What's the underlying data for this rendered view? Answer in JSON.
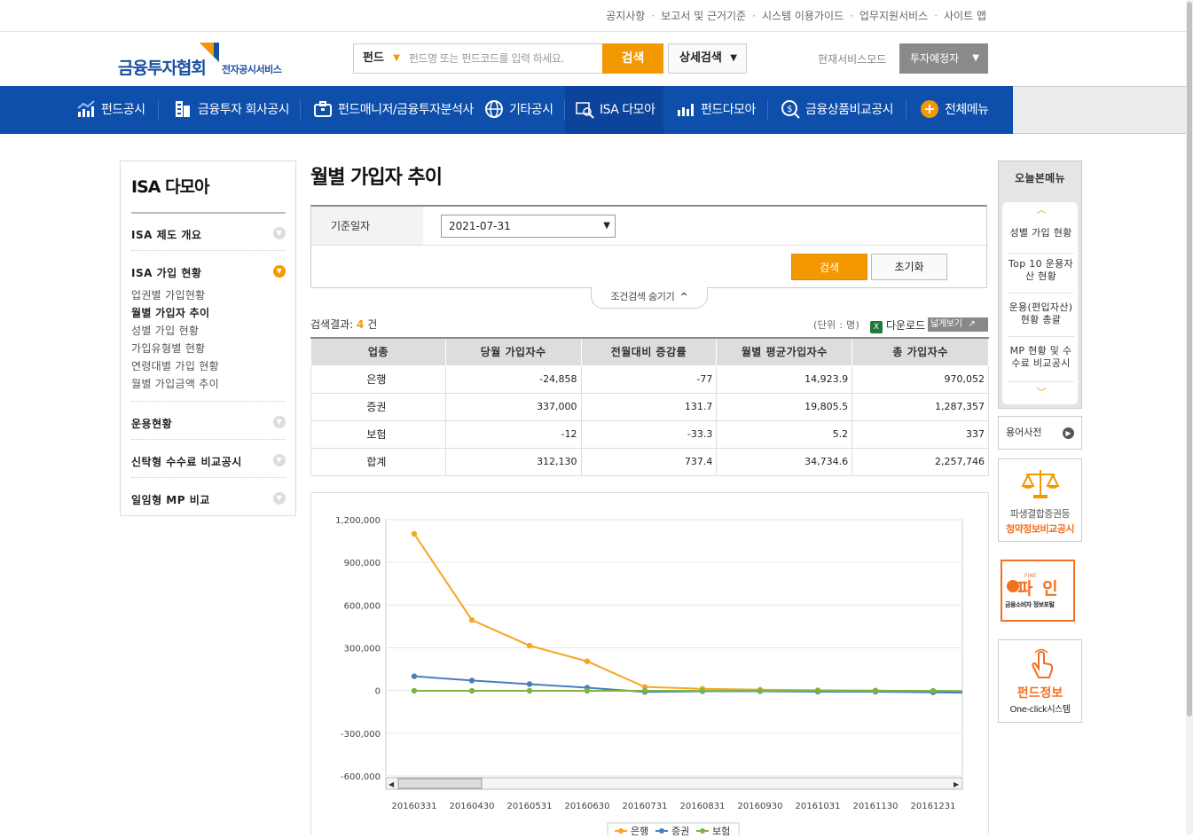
{
  "util_links": [
    "공지사항",
    "보고서 및 근거기준",
    "시스템 이용가이드",
    "업무지원서비스",
    "사이트 맵"
  ],
  "logo": {
    "main": "금융투자협회",
    "sub": "전자공시서비스"
  },
  "search": {
    "category": "펀드",
    "placeholder": "펀드명 또는 펀드코드를 입력 하세요.",
    "button": "검색",
    "advanced": "상세검색"
  },
  "mode": {
    "label": "현재서비스모드",
    "value": "투자예정자"
  },
  "gnb": [
    "펀드공시",
    "금융투자 회사공시",
    "펀드매니저/금융투자분석사",
    "기타공시",
    "ISA 다모아",
    "펀드다모아",
    "금융상품비교공시",
    "전체메뉴"
  ],
  "lnb": {
    "title": "ISA 다모아",
    "menus": [
      "ISA 제도 개요",
      "ISA 가입 현황",
      "운용현황",
      "신탁형 수수료 비교공시",
      "일임형 MP 비교"
    ],
    "subs": [
      "업권별 가입현황",
      "월별 가입자 추이",
      "성별 가입 현황",
      "가입유형별 현황",
      "연령대별 가입 현황",
      "월별 가입금액 추이"
    ]
  },
  "page_title": "월별 가입자 추이",
  "condition": {
    "label": "기준일자",
    "date": "2021-07-31",
    "search_btn": "검색",
    "reset_btn": "초기화",
    "toggle": "조건검색 숨기기"
  },
  "result": {
    "prefix": "검색결과:",
    "count": "4",
    "suffix": "건",
    "unit": "(단위 : 명)",
    "download": "다운로드",
    "wide": "넓게보기"
  },
  "table": {
    "headers": [
      "업종",
      "당월 가입자수",
      "전월대비 증감률",
      "월별 평균가입자수",
      "총 가입자수"
    ],
    "rows": [
      [
        "은행",
        "-24,858",
        "-77",
        "14,923.9",
        "970,052"
      ],
      [
        "증권",
        "337,000",
        "131.7",
        "19,805.5",
        "1,287,357"
      ],
      [
        "보험",
        "-12",
        "-33.3",
        "5.2",
        "337"
      ],
      [
        "합계",
        "312,130",
        "737.4",
        "34,734.6",
        "2,257,746"
      ]
    ]
  },
  "chart_data": {
    "type": "line",
    "x": [
      "20160331",
      "20160430",
      "20160531",
      "20160630",
      "20160731",
      "20160831",
      "20160930",
      "20161031",
      "20161130",
      "20161231"
    ],
    "ylim": [
      -600000,
      1200000
    ],
    "yticks": [
      "1,200,000",
      "900,000",
      "600,000",
      "300,000",
      "0",
      "-300,000",
      "-600,000"
    ],
    "series": [
      {
        "name": "은행",
        "color": "#f5a623",
        "values": [
          1100000,
          495000,
          315000,
          205000,
          25000,
          12000,
          6000,
          2000,
          0,
          -6000
        ]
      },
      {
        "name": "증권",
        "color": "#4a7ebb",
        "values": [
          100000,
          70000,
          45000,
          20000,
          -10000,
          -5000,
          -5000,
          -8000,
          -8000,
          -13000
        ]
      },
      {
        "name": "보험",
        "color": "#7cb342",
        "values": [
          -2000,
          -2000,
          -2000,
          -2000,
          -2000,
          -2000,
          -2000,
          -2000,
          -2000,
          -2000
        ]
      }
    ]
  },
  "right": {
    "today_title": "오늘본메뉴",
    "today_items": [
      "성별 가입 현황",
      "Top 10 운용자산 현황",
      "운용(편입자산) 현황 총괄",
      "MP 현황 및 수수료 비교공시"
    ],
    "dict": "용어사전",
    "banner1": {
      "line1": "파생결합증권등",
      "line2": "청약정보비교공시"
    },
    "banner2": {
      "fine": "FINE",
      "text": "파 인",
      "sub": "금융소비자 정보포털"
    },
    "banner3": {
      "line1": "펀드정보",
      "line2": "One-click시스템"
    }
  }
}
